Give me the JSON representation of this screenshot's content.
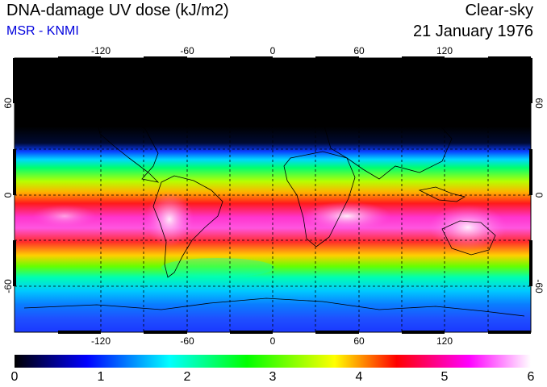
{
  "header": {
    "title": "DNA-damage UV dose (kJ/m2)",
    "subtitle": "MSR - KNMI",
    "condition": "Clear-sky",
    "date": "21 January 1976"
  },
  "map": {
    "lon_ticks": [
      "-120",
      "-60",
      "0",
      "60",
      "120"
    ],
    "lat_ticks": [
      "60",
      "0",
      "-60"
    ],
    "lat_ticks_right": [
      "60",
      "0",
      "-60"
    ]
  },
  "colorbar": {
    "labels": [
      "0",
      "1",
      "2",
      "3",
      "4",
      "5",
      "6"
    ]
  },
  "colors": {
    "scale": [
      "#000000",
      "#0000ff",
      "#00ffff",
      "#00ff00",
      "#ffff00",
      "#ff0000",
      "#ff00ff",
      "#ffffff"
    ]
  }
}
